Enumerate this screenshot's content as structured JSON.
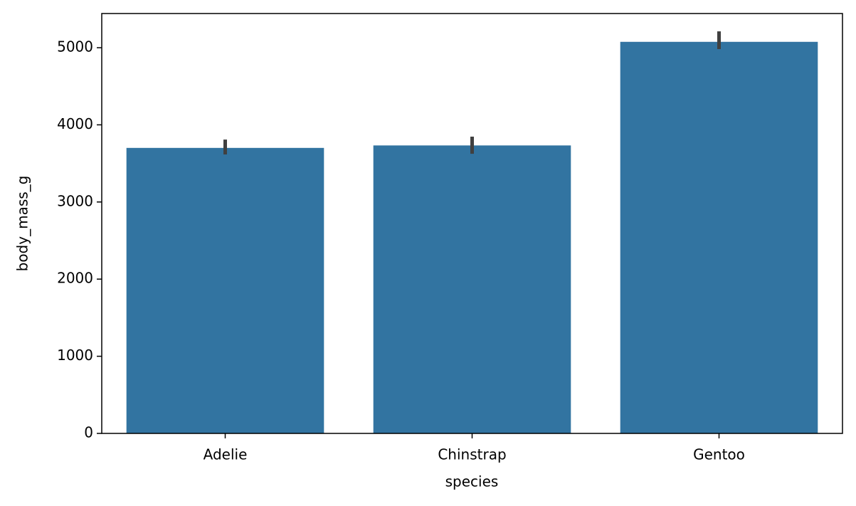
{
  "chart_data": {
    "type": "bar",
    "x_label": "species",
    "y_label": "body_mass_g",
    "categories": [
      "Adelie",
      "Chinstrap",
      "Gentoo"
    ],
    "values": [
      3701,
      3733,
      5076
    ],
    "ci_low": [
      3616,
      3625,
      4982
    ],
    "ci_high": [
      3809,
      3847,
      5212
    ],
    "color": "#3274a1",
    "error_color": "#404040",
    "ylim": [
      0,
      5443
    ],
    "yticks": [
      0,
      1000,
      2000,
      3000,
      4000,
      5000
    ],
    "grid": false
  }
}
